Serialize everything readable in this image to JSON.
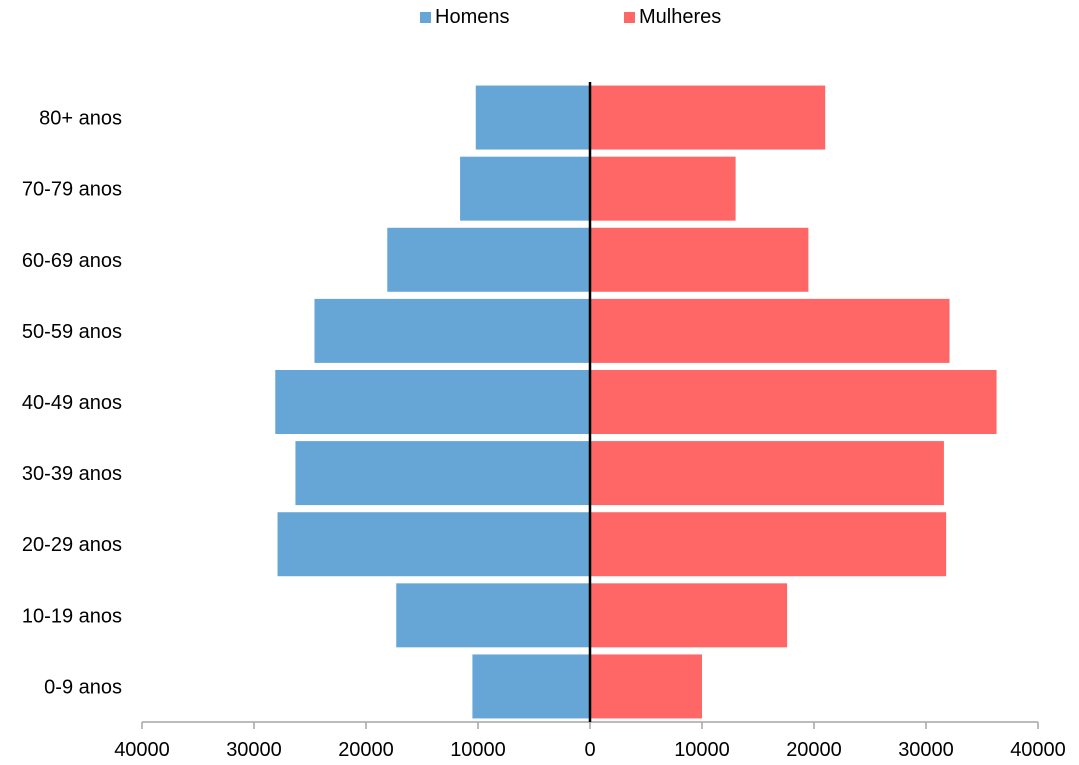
{
  "legend": {
    "men_label": "Homens",
    "women_label": "Mulheres"
  },
  "colors": {
    "men": "#66a6d6",
    "women": "#ff6666",
    "axis": "#000000",
    "tick_axis": "#a6a6a6"
  },
  "chart_data": {
    "type": "bar",
    "orientation": "horizontal",
    "style": "population-pyramid",
    "categories": [
      "0-9 anos",
      "10-19 anos",
      "20-29 anos",
      "30-39 anos",
      "40-49 anos",
      "50-59 anos",
      "60-69 anos",
      "70-79 anos",
      "80+ anos"
    ],
    "category_labels": [
      "0-9 anos",
      "10-19 anos",
      "20-29 anos",
      "30-39 anos",
      "40-49 anos",
      "50-59 anos",
      "60-69 anos",
      "70-79 anos",
      "80+ anos"
    ],
    "series": [
      {
        "name": "Homens",
        "side": "left",
        "values": [
          10500,
          17300,
          27900,
          26300,
          28100,
          24600,
          18100,
          11600,
          10200
        ]
      },
      {
        "name": "Mulheres",
        "side": "right",
        "values": [
          10000,
          17600,
          31800,
          31600,
          36300,
          32100,
          19500,
          13000,
          21000
        ]
      }
    ],
    "xlim": [
      -40000,
      40000
    ],
    "xticks": [
      -40000,
      -30000,
      -20000,
      -10000,
      0,
      10000,
      20000,
      30000,
      40000
    ],
    "xtick_labels": [
      "40000",
      "30000",
      "20000",
      "10000",
      "0",
      "10000",
      "20000",
      "30000",
      "40000"
    ],
    "legend_position": "top",
    "grid": false
  }
}
